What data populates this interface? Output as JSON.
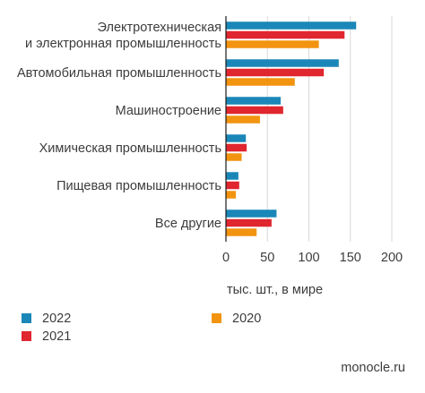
{
  "chart_data": {
    "type": "bar",
    "orientation": "horizontal",
    "categories": [
      [
        "Электротехническая",
        "и электронная промышленность"
      ],
      [
        "Автомобильная промышленность"
      ],
      [
        "Машиностроение"
      ],
      [
        "Химическая промышленность"
      ],
      [
        "Пищевая промышленность"
      ],
      [
        "Все другие"
      ]
    ],
    "series": [
      {
        "name": "2022",
        "color": "#1a87b8",
        "values": [
          157,
          136,
          66,
          24,
          15,
          61
        ]
      },
      {
        "name": "2021",
        "color": "#e0262f",
        "values": [
          143,
          118,
          69,
          25,
          16,
          55
        ]
      },
      {
        "name": "2020",
        "color": "#f29410",
        "values": [
          112,
          83,
          41,
          19,
          12,
          37
        ]
      }
    ],
    "xlim": [
      0,
      200
    ],
    "xticks": [
      "0",
      "50",
      "100",
      "150",
      "200"
    ],
    "xlabel": "тыс. шт., в мире",
    "grid": true,
    "legend": "bottom"
  },
  "source": "monocle.ru"
}
